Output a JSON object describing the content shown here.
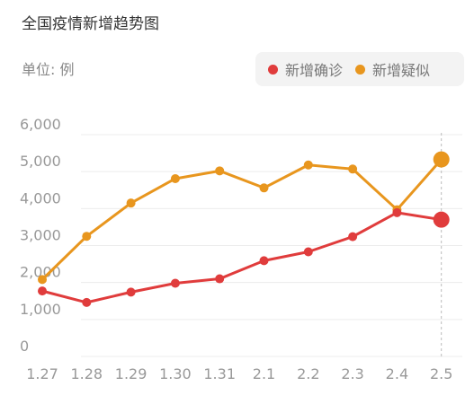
{
  "header": {
    "title": "全国疫情新增趋势图",
    "unit": "单位: 例"
  },
  "legend": {
    "items": [
      {
        "label": "新增确诊",
        "color": "#e03c3c"
      },
      {
        "label": "新增疑似",
        "color": "#e8961e"
      }
    ]
  },
  "chart_data": {
    "type": "line",
    "title": "全国疫情新增趋势图",
    "xlabel": "",
    "ylabel": "单位: 例",
    "categories": [
      "1.27",
      "1.28",
      "1.29",
      "1.30",
      "1.31",
      "2.1",
      "2.2",
      "2.3",
      "2.4",
      "2.5"
    ],
    "ylim": [
      0,
      6000
    ],
    "yticks": [
      {
        "value": 0,
        "label": "0"
      },
      {
        "value": 1000,
        "label": "1,000"
      },
      {
        "value": 2000,
        "label": "2,000"
      },
      {
        "value": 3000,
        "label": "3,000"
      },
      {
        "value": 4000,
        "label": "4,000"
      },
      {
        "value": 5000,
        "label": "5,000"
      },
      {
        "value": 6000,
        "label": "6,000"
      }
    ],
    "grid": true,
    "legend_position": "top-right",
    "highlight_category": "2.5",
    "series": [
      {
        "name": "新增确诊",
        "color": "#e03c3c",
        "values": [
          1770,
          1460,
          1740,
          1980,
          2100,
          2590,
          2830,
          3240,
          3890,
          3700
        ]
      },
      {
        "name": "新增疑似",
        "color": "#e8961e",
        "values": [
          2080,
          3250,
          4150,
          4810,
          5020,
          4560,
          5180,
          5070,
          3970,
          5330
        ]
      }
    ]
  }
}
